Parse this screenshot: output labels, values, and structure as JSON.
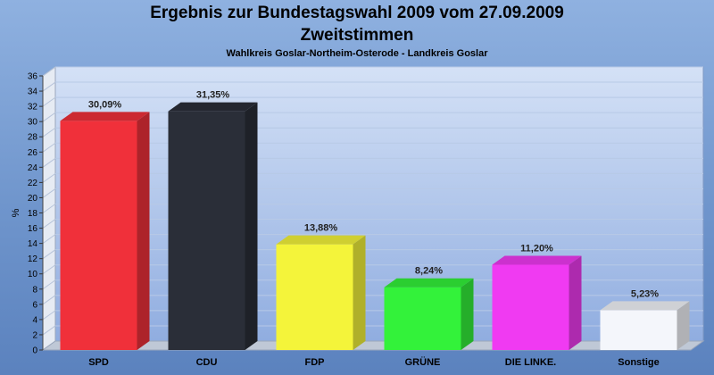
{
  "title": "Ergebnis zur Bundestagswahl 2009 vom 27.09.2009",
  "subtitle": "Zweitstimmen",
  "subtitle2": "Wahlkreis Goslar-Northeim-Osterode - Landkreis Goslar",
  "chart_data": {
    "type": "bar",
    "categories": [
      "SPD",
      "CDU",
      "FDP",
      "GRÜNE",
      "DIE LINKE.",
      "Sonstige"
    ],
    "values": [
      30.09,
      31.35,
      13.88,
      8.24,
      11.2,
      5.23
    ],
    "value_labels": [
      "30,09%",
      "31,35%",
      "13,88%",
      "8,24%",
      "11,20%",
      "5,23%"
    ],
    "colors": [
      "#f0303a",
      "#2a2e38",
      "#f4f43a",
      "#33f23a",
      "#f03af2",
      "#f4f6fb"
    ],
    "ylabel": "%",
    "ylim": [
      0,
      36
    ],
    "yticks": [
      0,
      2,
      4,
      6,
      8,
      10,
      12,
      14,
      16,
      18,
      20,
      22,
      24,
      26,
      28,
      30,
      32,
      34,
      36
    ],
    "grid": true
  }
}
